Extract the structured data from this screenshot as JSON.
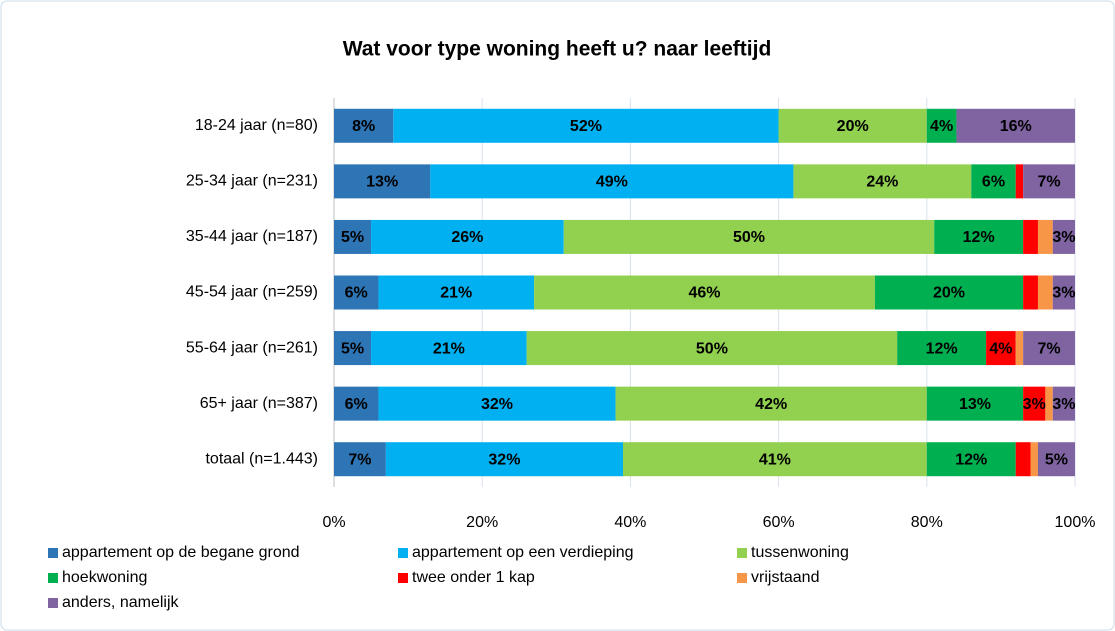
{
  "chart_data": {
    "type": "stacked_barh",
    "title": "Wat voor type woning heeft u? naar leeftijd",
    "categories": [
      "18-24 jaar (n=80)",
      "25-34 jaar (n=231)",
      "35-44 jaar (n=187)",
      "45-54 jaar (n=259)",
      "55-64 jaar (n=261)",
      "65+ jaar (n=387)",
      "totaal (n=1.443)"
    ],
    "series": [
      {
        "name": "appartement op de begane grond",
        "color": "#2e75b6",
        "values": [
          8,
          13,
          5,
          6,
          5,
          6,
          7
        ],
        "value_labels": [
          "8%",
          "13%",
          "5%",
          "6%",
          "5%",
          "6%",
          "7%"
        ]
      },
      {
        "name": "appartement op een verdieping",
        "color": "#00b0f0",
        "values": [
          52,
          49,
          26,
          21,
          21,
          32,
          32
        ],
        "value_labels": [
          "52%",
          "49%",
          "26%",
          "21%",
          "21%",
          "32%",
          "32%"
        ]
      },
      {
        "name": "tussenwoning",
        "color": "#92d050",
        "values": [
          20,
          24,
          50,
          46,
          50,
          42,
          41
        ],
        "value_labels": [
          "20%",
          "24%",
          "50%",
          "46%",
          "50%",
          "42%",
          "41%"
        ]
      },
      {
        "name": "hoekwoning",
        "color": "#00b050",
        "values": [
          4,
          6,
          12,
          20,
          12,
          13,
          12
        ],
        "value_labels": [
          "4%",
          "6%",
          "12%",
          "20%",
          "12%",
          "13%",
          "12%"
        ]
      },
      {
        "name": "twee onder 1 kap",
        "color": "#ff0000",
        "values": [
          0,
          1,
          2,
          2,
          4,
          3,
          2
        ],
        "value_labels": [
          null,
          null,
          null,
          null,
          "4%",
          "3%",
          null
        ]
      },
      {
        "name": "vrijstaand",
        "color": "#f79646",
        "values": [
          0,
          0,
          2,
          2,
          1,
          1,
          1
        ],
        "value_labels": [
          null,
          null,
          null,
          null,
          null,
          null,
          null
        ]
      },
      {
        "name": "anders, namelijk",
        "color": "#8064a2",
        "values": [
          16,
          7,
          3,
          3,
          7,
          3,
          5
        ],
        "value_labels": [
          "16%",
          "7%",
          "3%",
          "3%",
          "7%",
          "3%",
          "5%"
        ]
      }
    ],
    "xlim": [
      0,
      100
    ],
    "xticks": [
      {
        "value": 0,
        "label": "0%"
      },
      {
        "value": 20,
        "label": "20%"
      },
      {
        "value": 40,
        "label": "40%"
      },
      {
        "value": 60,
        "label": "60%"
      },
      {
        "value": 80,
        "label": "80%"
      },
      {
        "value": 100,
        "label": "100%"
      }
    ],
    "grid": true
  }
}
